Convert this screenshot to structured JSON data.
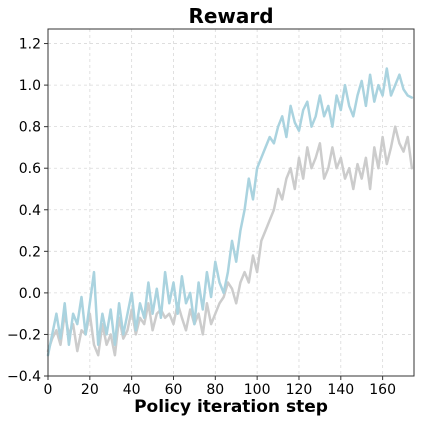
{
  "chart_data": {
    "type": "line",
    "title": "Reward",
    "xlabel": "Policy iteration step",
    "ylabel": "",
    "xlim": [
      0,
      175
    ],
    "ylim": [
      -0.4,
      1.27
    ],
    "xticks": [
      0,
      20,
      40,
      60,
      80,
      100,
      120,
      140,
      160
    ],
    "yticks": [
      -0.4,
      -0.2,
      0.0,
      0.2,
      0.4,
      0.6,
      0.8,
      1.0,
      1.2
    ],
    "xtick_labels": [
      "0",
      "20",
      "40",
      "60",
      "80",
      "100",
      "120",
      "140",
      "160"
    ],
    "ytick_labels": [
      "−0.4",
      "−0.2",
      "0.0",
      "0.2",
      "0.4",
      "0.6",
      "0.8",
      "1.0",
      "1.2"
    ],
    "grid": true,
    "series": [
      {
        "color": "#cccccc",
        "x": [
          0,
          2,
          4,
          6,
          8,
          10,
          12,
          14,
          16,
          18,
          20,
          22,
          24,
          26,
          28,
          30,
          32,
          34,
          36,
          38,
          40,
          42,
          44,
          46,
          48,
          50,
          52,
          54,
          56,
          58,
          60,
          62,
          64,
          66,
          68,
          70,
          72,
          74,
          76,
          78,
          80,
          82,
          84,
          86,
          88,
          90,
          92,
          94,
          96,
          98,
          100,
          102,
          104,
          106,
          108,
          110,
          112,
          114,
          116,
          118,
          120,
          122,
          124,
          126,
          128,
          130,
          132,
          134,
          136,
          138,
          140,
          142,
          144,
          146,
          148,
          150,
          152,
          154,
          156,
          158,
          160,
          162,
          164,
          166,
          168,
          170,
          172,
          174
        ],
        "y": [
          -0.28,
          -0.22,
          -0.18,
          -0.25,
          -0.1,
          -0.2,
          -0.15,
          -0.28,
          -0.18,
          -0.2,
          -0.1,
          -0.25,
          -0.3,
          -0.15,
          -0.25,
          -0.2,
          -0.3,
          -0.12,
          -0.22,
          -0.18,
          -0.08,
          -0.2,
          -0.12,
          -0.15,
          -0.05,
          -0.18,
          -0.1,
          -0.08,
          -0.12,
          -0.1,
          -0.15,
          -0.05,
          -0.12,
          -0.18,
          -0.08,
          -0.15,
          -0.1,
          -0.2,
          -0.05,
          -0.15,
          -0.1,
          -0.05,
          -0.02,
          0.05,
          0.02,
          -0.05,
          0.05,
          0.1,
          0.05,
          0.18,
          0.1,
          0.25,
          0.3,
          0.35,
          0.4,
          0.5,
          0.45,
          0.55,
          0.6,
          0.5,
          0.65,
          0.55,
          0.7,
          0.6,
          0.65,
          0.72,
          0.55,
          0.6,
          0.7,
          0.6,
          0.65,
          0.55,
          0.6,
          0.5,
          0.62,
          0.55,
          0.65,
          0.5,
          0.7,
          0.6,
          0.75,
          0.62,
          0.7,
          0.8,
          0.72,
          0.68,
          0.75,
          0.6
        ]
      },
      {
        "color": "#aad3df",
        "x": [
          0,
          2,
          4,
          6,
          8,
          10,
          12,
          14,
          16,
          18,
          20,
          22,
          24,
          26,
          28,
          30,
          32,
          34,
          36,
          38,
          40,
          42,
          44,
          46,
          48,
          50,
          52,
          54,
          56,
          58,
          60,
          62,
          64,
          66,
          68,
          70,
          72,
          74,
          76,
          78,
          80,
          82,
          84,
          86,
          88,
          90,
          92,
          94,
          96,
          98,
          100,
          102,
          104,
          106,
          108,
          110,
          112,
          114,
          116,
          118,
          120,
          122,
          124,
          126,
          128,
          130,
          132,
          134,
          136,
          138,
          140,
          142,
          144,
          146,
          148,
          150,
          152,
          154,
          156,
          158,
          160,
          162,
          164,
          166,
          168,
          170,
          172,
          174
        ],
        "y": [
          -0.3,
          -0.2,
          -0.1,
          -0.22,
          -0.05,
          -0.25,
          -0.1,
          -0.15,
          -0.02,
          -0.2,
          -0.05,
          0.1,
          -0.25,
          -0.1,
          -0.2,
          -0.08,
          -0.25,
          -0.05,
          -0.2,
          -0.1,
          0.0,
          -0.18,
          -0.05,
          -0.12,
          0.05,
          -0.1,
          0.02,
          -0.12,
          0.1,
          -0.05,
          0.05,
          -0.1,
          0.08,
          -0.05,
          0.0,
          -0.15,
          0.05,
          -0.08,
          0.1,
          -0.02,
          0.15,
          0.05,
          0.0,
          0.1,
          0.25,
          0.15,
          0.3,
          0.4,
          0.55,
          0.45,
          0.6,
          0.65,
          0.7,
          0.75,
          0.72,
          0.8,
          0.85,
          0.75,
          0.9,
          0.82,
          0.78,
          0.88,
          0.92,
          0.8,
          0.85,
          0.95,
          0.85,
          0.9,
          0.8,
          0.95,
          0.88,
          1.0,
          0.9,
          0.85,
          0.95,
          1.02,
          0.9,
          1.05,
          0.92,
          1.0,
          0.95,
          1.08,
          0.95,
          1.0,
          1.05,
          0.98,
          0.95,
          0.94
        ]
      }
    ]
  }
}
